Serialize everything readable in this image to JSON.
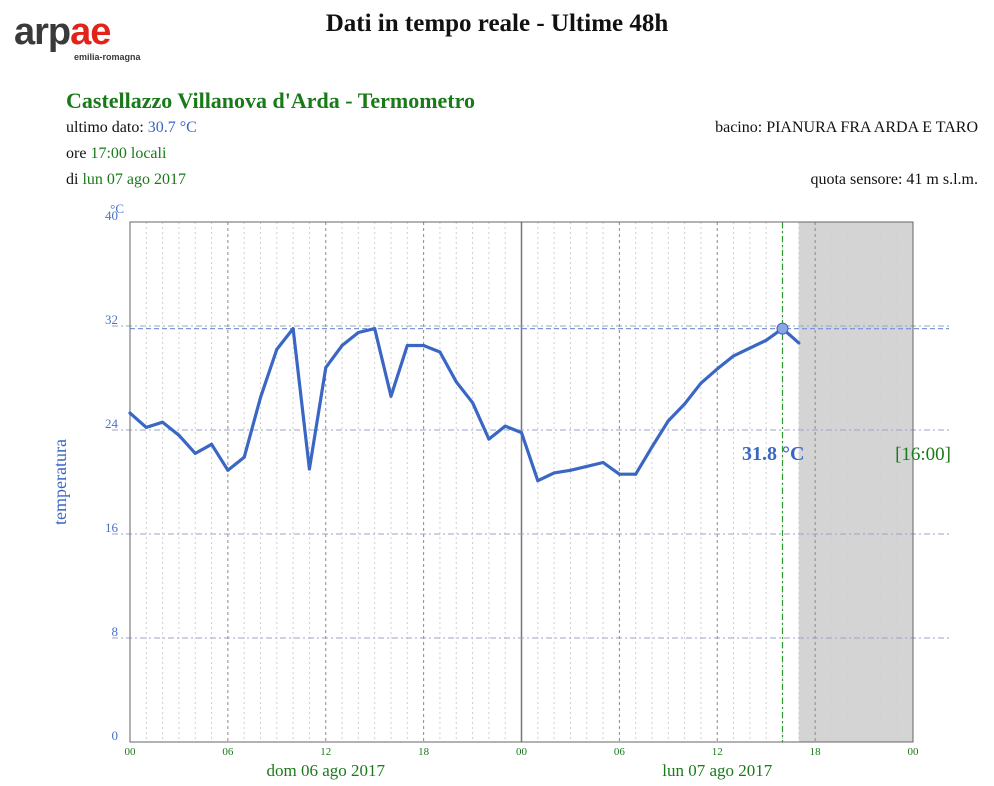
{
  "header": {
    "logo_text_1": "arp",
    "logo_text_2": "ae",
    "logo_subtitle": "emilia-romagna",
    "title": "Dati in tempo reale - Ultime 48h"
  },
  "station": {
    "title": "Castellazzo Villanova d'Arda - Termometro",
    "last_value_label": "ultimo dato:",
    "last_value": "30.7 °C",
    "time_label": "ore",
    "time_value": "17:00 locali",
    "date_label": "di",
    "date_value": "lun 07 ago 2017",
    "basin": "bacino: PIANURA FRA ARDA E TARO",
    "altitude": "quota sensore: 41 m s.l.m."
  },
  "colors": {
    "series": "#3a66c4",
    "green_text": "#1a7a1a",
    "future_shade": "#d4d4d4"
  },
  "chart_data": {
    "type": "line",
    "unit": "°C",
    "ylabel": "temperatura",
    "ylim": [
      0,
      40
    ],
    "yticks": [
      "0",
      "8",
      "16",
      "24",
      "32",
      "40"
    ],
    "xticks": [
      "00",
      "06",
      "12",
      "18",
      "00",
      "06",
      "12",
      "18",
      "00"
    ],
    "day_labels": [
      "dom 06 ago 2017",
      "lun 07 ago 2017"
    ],
    "x_hours": [
      0,
      1,
      2,
      3,
      4,
      5,
      6,
      7,
      8,
      9,
      10,
      11,
      12,
      13,
      14,
      15,
      16,
      17,
      18,
      19,
      20,
      21,
      22,
      23,
      24,
      25,
      26,
      27,
      28,
      29,
      30,
      31,
      32,
      33,
      34,
      35,
      36,
      37,
      38,
      39,
      40,
      41
    ],
    "series": [
      {
        "values": [
          25.3,
          24.2,
          24.6,
          23.6,
          22.2,
          22.9,
          20.9,
          21.9,
          26.5,
          30.2,
          31.8,
          21.0,
          28.8,
          30.5,
          31.5,
          31.8,
          26.6,
          30.5,
          30.5,
          30.0,
          27.7,
          26.1,
          23.3,
          24.3,
          23.8,
          20.1,
          20.7,
          20.9,
          21.2,
          21.5,
          20.6,
          20.6,
          22.7,
          24.7,
          26.0,
          27.6,
          28.7,
          29.7,
          30.3,
          30.9,
          31.8,
          30.7
        ]
      }
    ],
    "max_value": 31.8,
    "max_value_label": "31.8 °C",
    "max_time_label": "[16:00]",
    "grid": true
  }
}
